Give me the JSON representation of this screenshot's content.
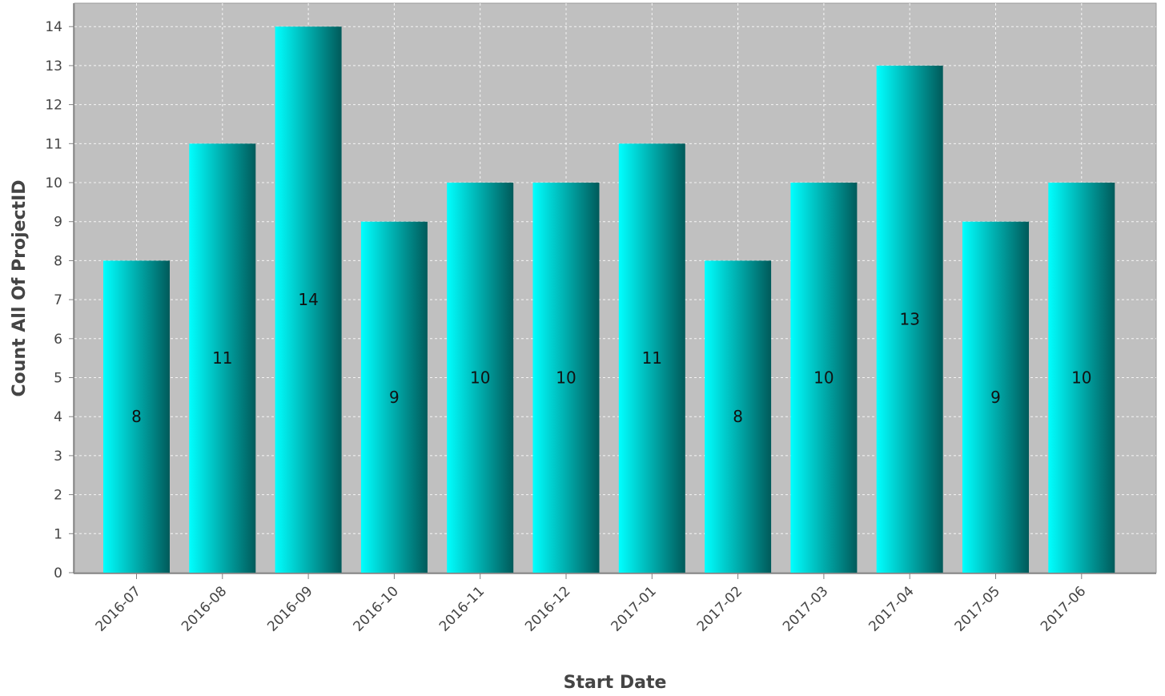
{
  "chart_data": {
    "type": "bar",
    "title": "",
    "xlabel": "Start Date",
    "ylabel": "Count All Of ProjectID",
    "categories": [
      "2016-07",
      "2016-08",
      "2016-09",
      "2016-10",
      "2016-11",
      "2016-12",
      "2017-01",
      "2017-02",
      "2017-03",
      "2017-04",
      "2017-05",
      "2017-06"
    ],
    "values": [
      8,
      11,
      14,
      9,
      10,
      10,
      11,
      8,
      10,
      13,
      9,
      10
    ],
    "ylim": [
      0,
      14.6
    ],
    "yticks": [
      0,
      1,
      2,
      3,
      4,
      5,
      6,
      7,
      8,
      9,
      10,
      11,
      12,
      13,
      14
    ],
    "grid": true,
    "legend": "none",
    "colors": {
      "plot_background": "#c0c0c0",
      "bar_light": "#00ffff",
      "bar_dark": "#005a5a",
      "gridline": "#ffffff"
    }
  }
}
